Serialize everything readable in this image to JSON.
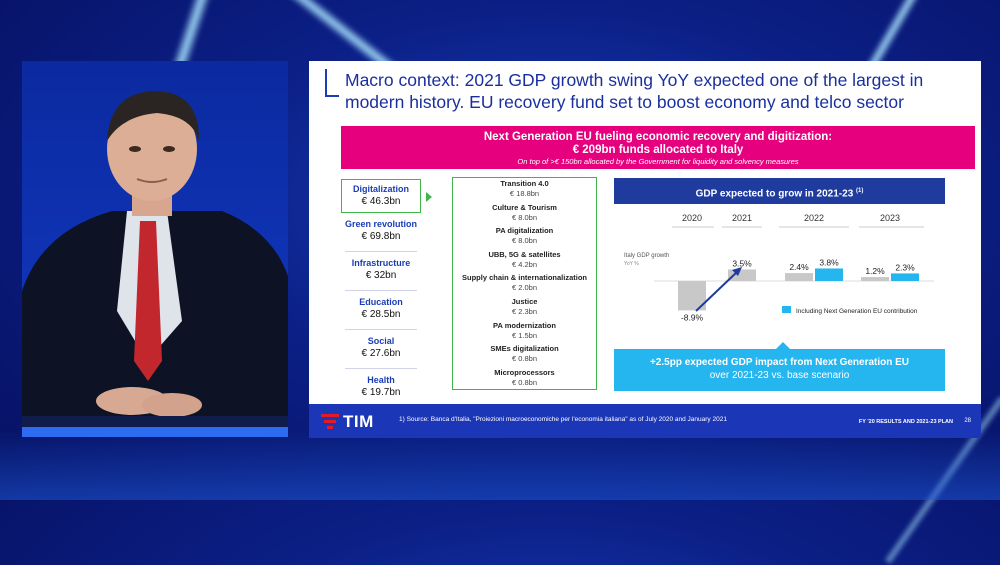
{
  "slide": {
    "title": "Macro context: 2021 GDP growth swing YoY expected one of the largest in modern history. EU recovery fund set to boost economy and telco sector",
    "banner": {
      "line1": "Next Generation EU fueling economic recovery and digitization:",
      "line2": "€ 209bn funds allocated to Italy",
      "line3": "On top of >€ 150bn allocated by the Government for liquidity and solvency measures"
    },
    "categories": [
      {
        "name": "Digitalization",
        "value": "€ 46.3bn"
      },
      {
        "name": "Green revolution",
        "value": "€ 69.8bn"
      },
      {
        "name": "Infrastructure",
        "value": "€ 32bn"
      },
      {
        "name": "Education",
        "value": "€ 28.5bn"
      },
      {
        "name": "Social",
        "value": "€ 27.6bn"
      },
      {
        "name": "Health",
        "value": "€ 19.7bn"
      }
    ],
    "digitalization_items": [
      {
        "name": "Transition 4.0",
        "value": "€ 18.8bn"
      },
      {
        "name": "Culture & Tourism",
        "value": "€ 8.0bn"
      },
      {
        "name": "PA digitalization",
        "value": "€ 8.0bn"
      },
      {
        "name": "UBB, 5G & satellites",
        "value": "€ 4.2bn"
      },
      {
        "name": "Supply chain & internationalization",
        "value": "€ 2.0bn"
      },
      {
        "name": "Justice",
        "value": "€ 2.3bn"
      },
      {
        "name": "PA modernization",
        "value": "€ 1.5bn"
      },
      {
        "name": "SMEs digitalization",
        "value": "€ 0.8bn"
      },
      {
        "name": "Microprocessors",
        "value": "€ 0.8bn"
      }
    ],
    "gdp_header": "GDP expected to grow in 2021-23",
    "gdp_header_note": "(1)",
    "impact": {
      "line1": "+2.5pp expected GDP impact from Next Generation EU",
      "line2": "over 2021-23 vs. base scenario"
    },
    "footer": {
      "logo": "TIM",
      "footnote": "1)   Source: Banca d'Italia, \"Proiezioni macroeconomiche per l'economia italiana\" as of July 2020 and January 2021",
      "plan": "FY '20 RESULTS AND 2021-23 PLAN",
      "page": "28"
    }
  },
  "chart_data": {
    "type": "bar",
    "categories": [
      "2020",
      "2021",
      "2022",
      "2023"
    ],
    "series": [
      {
        "name": "Italy GDP growth",
        "values": [
          -8.9,
          3.5,
          2.4,
          1.2
        ]
      },
      {
        "name": "Including Next Generation EU contribution",
        "values": [
          null,
          null,
          3.8,
          2.3
        ]
      }
    ],
    "value_labels": [
      "-8.9%",
      "3.5%",
      "2.4%",
      "3.8%",
      "1.2%",
      "2.3%"
    ],
    "ylabel": "Italy GDP growth",
    "ylabel_unit": "YoY %",
    "legend": "Including Next Generation EU contribution",
    "colors": {
      "base": "#c8c8c8",
      "ngeu": "#25b6ef",
      "arrow": "#1f3b9e"
    }
  },
  "colors": {
    "brand_blue": "#1c36b8",
    "magenta": "#e6007e",
    "cyan": "#25b6ef",
    "green": "#3fb64a",
    "tim_red": "#e31b23"
  }
}
